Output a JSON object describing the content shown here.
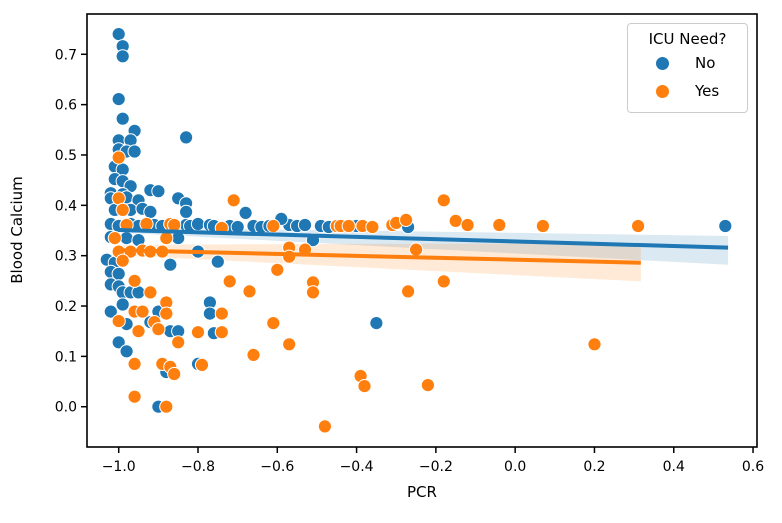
{
  "chart_data": {
    "type": "scatter",
    "title": "",
    "xlabel": "PCR",
    "ylabel": "Blood Calcium",
    "xlim": [
      -1.08,
      0.61
    ],
    "ylim": [
      -0.08,
      0.78
    ],
    "grid": false,
    "x_ticks": {
      "values": [
        -1.0,
        -0.8,
        -0.6,
        -0.4,
        -0.2,
        0.0,
        0.2,
        0.4,
        0.6
      ],
      "labels": [
        "−1.0",
        "−0.8",
        "−0.6",
        "−0.4",
        "−0.2",
        "0.0",
        "0.2",
        "0.4",
        "0.6"
      ]
    },
    "y_ticks": {
      "values": [
        0.0,
        0.1,
        0.2,
        0.3,
        0.4,
        0.5,
        0.6,
        0.7
      ],
      "labels": [
        "0.0",
        "0.1",
        "0.2",
        "0.3",
        "0.4",
        "0.5",
        "0.6",
        "0.7"
      ]
    },
    "legend": {
      "title": "ICU Need?",
      "position": "upper right",
      "items": [
        {
          "label": "No",
          "color": "#1f77b4"
        },
        {
          "label": "Yes",
          "color": "#ff7f0e"
        }
      ]
    },
    "series": [
      {
        "name": "No",
        "color": "#1f77b4",
        "points": [
          [
            -1.0,
            0.74
          ],
          [
            -0.99,
            0.716
          ],
          [
            -0.99,
            0.696
          ],
          [
            -1.0,
            0.611
          ],
          [
            -0.99,
            0.572
          ],
          [
            -0.96,
            0.548
          ],
          [
            -1.0,
            0.529
          ],
          [
            -0.97,
            0.529
          ],
          [
            -1.0,
            0.511
          ],
          [
            -0.98,
            0.507
          ],
          [
            -0.96,
            0.507
          ],
          [
            -0.83,
            0.535
          ],
          [
            -1.01,
            0.477
          ],
          [
            -0.99,
            0.471
          ],
          [
            -1.01,
            0.452
          ],
          [
            -0.99,
            0.448
          ],
          [
            -0.97,
            0.438
          ],
          [
            -1.02,
            0.424
          ],
          [
            -0.99,
            0.422
          ],
          [
            -0.92,
            0.43
          ],
          [
            -0.9,
            0.428
          ],
          [
            -1.02,
            0.414
          ],
          [
            -0.98,
            0.416
          ],
          [
            -0.95,
            0.41
          ],
          [
            -0.85,
            0.414
          ],
          [
            -0.83,
            0.404
          ],
          [
            -1.01,
            0.391
          ],
          [
            -0.97,
            0.391
          ],
          [
            -0.94,
            0.393
          ],
          [
            -0.92,
            0.387
          ],
          [
            -0.83,
            0.387
          ],
          [
            -1.02,
            0.363
          ],
          [
            -1.0,
            0.359
          ],
          [
            -0.97,
            0.363
          ],
          [
            -0.95,
            0.359
          ],
          [
            -0.91,
            0.361
          ],
          [
            -0.89,
            0.359
          ],
          [
            -0.83,
            0.361
          ],
          [
            -0.82,
            0.359
          ],
          [
            -0.8,
            0.363
          ],
          [
            -0.77,
            0.361
          ],
          [
            -0.76,
            0.359
          ],
          [
            -0.72,
            0.359
          ],
          [
            -0.7,
            0.357
          ],
          [
            -0.66,
            0.359
          ],
          [
            -0.64,
            0.357
          ],
          [
            -0.62,
            0.359
          ],
          [
            -0.57,
            0.361
          ],
          [
            -0.55,
            0.359
          ],
          [
            -0.53,
            0.361
          ],
          [
            -0.49,
            0.359
          ],
          [
            -0.47,
            0.357
          ],
          [
            -0.4,
            0.359
          ],
          [
            -0.27,
            0.357
          ],
          [
            0.53,
            0.359
          ],
          [
            -0.68,
            0.385
          ],
          [
            -0.59,
            0.373
          ],
          [
            -1.02,
            0.337
          ],
          [
            -0.98,
            0.335
          ],
          [
            -0.95,
            0.331
          ],
          [
            -0.85,
            0.335
          ],
          [
            -0.51,
            0.331
          ],
          [
            -0.8,
            0.308
          ],
          [
            -0.75,
            0.288
          ],
          [
            -1.03,
            0.292
          ],
          [
            -1.01,
            0.286
          ],
          [
            -0.87,
            0.282
          ],
          [
            -1.02,
            0.268
          ],
          [
            -1.0,
            0.264
          ],
          [
            -1.02,
            0.243
          ],
          [
            -1.0,
            0.239
          ],
          [
            -0.99,
            0.227
          ],
          [
            -0.97,
            0.227
          ],
          [
            -0.95,
            0.227
          ],
          [
            -0.99,
            0.203
          ],
          [
            -1.02,
            0.189
          ],
          [
            -0.9,
            0.189
          ],
          [
            -0.77,
            0.207
          ],
          [
            -0.77,
            0.185
          ],
          [
            -0.98,
            0.164
          ],
          [
            -0.92,
            0.168
          ],
          [
            -0.76,
            0.146
          ],
          [
            -0.87,
            0.15
          ],
          [
            -0.85,
            0.15
          ],
          [
            -1.0,
            0.128
          ],
          [
            -0.98,
            0.11
          ],
          [
            -0.8,
            0.085
          ],
          [
            -0.88,
            0.069
          ],
          [
            -0.35,
            0.166
          ],
          [
            -0.9,
            0.0
          ]
        ]
      },
      {
        "name": "Yes",
        "color": "#ff7f0e",
        "points": [
          [
            -1.0,
            0.495
          ],
          [
            -1.0,
            0.414
          ],
          [
            -0.99,
            0.391
          ],
          [
            -0.98,
            0.361
          ],
          [
            -0.93,
            0.363
          ],
          [
            -0.87,
            0.363
          ],
          [
            -0.86,
            0.361
          ],
          [
            -0.74,
            0.355
          ],
          [
            -0.61,
            0.359
          ],
          [
            -0.45,
            0.359
          ],
          [
            -0.44,
            0.359
          ],
          [
            -0.42,
            0.359
          ],
          [
            -0.385,
            0.359
          ],
          [
            -0.36,
            0.357
          ],
          [
            -0.31,
            0.361
          ],
          [
            -0.3,
            0.365
          ],
          [
            -0.275,
            0.371
          ],
          [
            -0.15,
            0.369
          ],
          [
            -0.12,
            0.361
          ],
          [
            -0.04,
            0.361
          ],
          [
            0.07,
            0.359
          ],
          [
            0.31,
            0.359
          ],
          [
            -0.71,
            0.41
          ],
          [
            -0.18,
            0.41
          ],
          [
            -1.01,
            0.335
          ],
          [
            -0.88,
            0.335
          ],
          [
            -1.0,
            0.308
          ],
          [
            -0.97,
            0.308
          ],
          [
            -0.94,
            0.31
          ],
          [
            -0.92,
            0.308
          ],
          [
            -0.89,
            0.308
          ],
          [
            -0.57,
            0.316
          ],
          [
            -0.57,
            0.298
          ],
          [
            -0.53,
            0.312
          ],
          [
            -0.25,
            0.312
          ],
          [
            -0.99,
            0.29
          ],
          [
            -0.96,
            0.25
          ],
          [
            -0.92,
            0.227
          ],
          [
            -0.88,
            0.207
          ],
          [
            -0.96,
            0.189
          ],
          [
            -0.94,
            0.189
          ],
          [
            -0.88,
            0.185
          ],
          [
            -0.74,
            0.185
          ],
          [
            -1.0,
            0.17
          ],
          [
            -0.91,
            0.168
          ],
          [
            -0.95,
            0.15
          ],
          [
            -0.9,
            0.154
          ],
          [
            -0.8,
            0.148
          ],
          [
            -0.74,
            0.148
          ],
          [
            -0.85,
            0.128
          ],
          [
            -0.61,
            0.166
          ],
          [
            -0.57,
            0.124
          ],
          [
            -0.66,
            0.103
          ],
          [
            -0.96,
            0.085
          ],
          [
            -0.89,
            0.085
          ],
          [
            -0.87,
            0.079
          ],
          [
            -0.86,
            0.065
          ],
          [
            -0.79,
            0.083
          ],
          [
            -0.96,
            0.02
          ],
          [
            -0.88,
            0.0
          ],
          [
            -0.72,
            0.249
          ],
          [
            -0.67,
            0.229
          ],
          [
            -0.6,
            0.272
          ],
          [
            -0.51,
            0.247
          ],
          [
            -0.51,
            0.227
          ],
          [
            -0.27,
            0.229
          ],
          [
            -0.18,
            0.249
          ],
          [
            -0.39,
            0.061
          ],
          [
            -0.38,
            0.041
          ],
          [
            -0.22,
            0.043
          ],
          [
            -0.48,
            -0.039
          ],
          [
            0.2,
            0.124
          ]
        ]
      }
    ],
    "regression": [
      {
        "name": "No",
        "color": "#1f77b4",
        "line": {
          "x": [
            -1.0,
            0.537
          ],
          "y": [
            0.351,
            0.316
          ]
        },
        "band": {
          "x": [
            -1.0,
            0.537
          ],
          "top": [
            0.357,
            0.339
          ],
          "bottom": [
            0.346,
            0.282
          ]
        }
      },
      {
        "name": "Yes",
        "color": "#ff7f0e",
        "line": {
          "x": [
            -1.0,
            0.317
          ],
          "y": [
            0.311,
            0.286
          ]
        },
        "band": {
          "x": [
            -1.0,
            0.317
          ],
          "top": [
            0.322,
            0.325
          ],
          "bottom": [
            0.301,
            0.249
          ]
        }
      }
    ],
    "style": {
      "marker_radius": 6.6,
      "marker_edge_color": "#ffffff",
      "line_width": 4,
      "band_opacity": 0.16,
      "spine_color": "#000000"
    }
  }
}
